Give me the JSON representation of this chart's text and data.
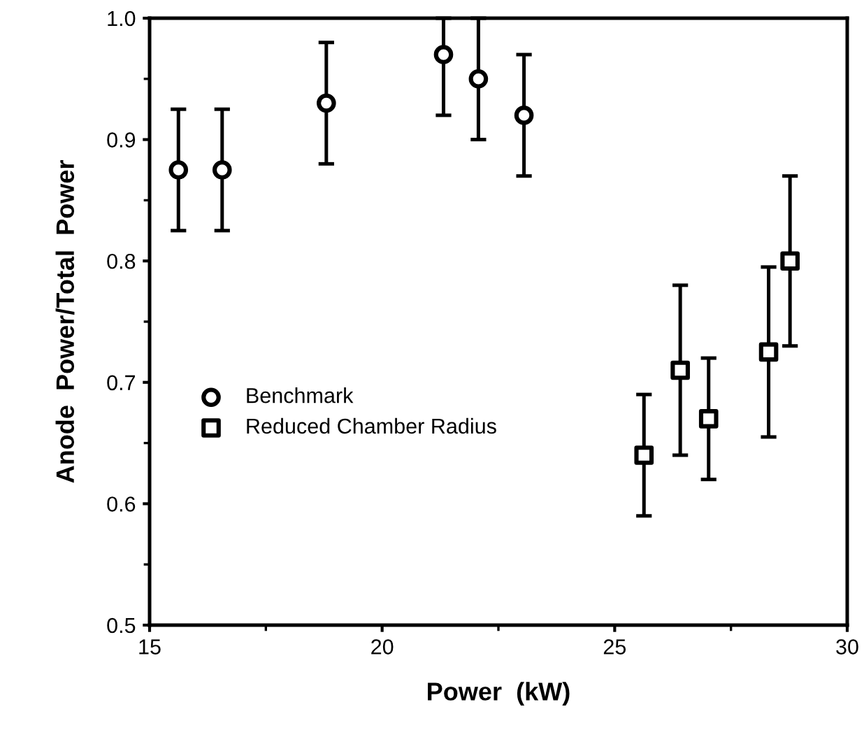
{
  "chart_data": {
    "type": "scatter",
    "xlabel": "Power  (kW)",
    "ylabel": "Anode  Power/Total  Power",
    "xlim": [
      15,
      30
    ],
    "ylim": [
      0.5,
      1.0
    ],
    "xticks": [
      15,
      20,
      25,
      30
    ],
    "yticks": [
      0.5,
      0.6,
      0.7,
      0.8,
      0.9,
      {
        "value": 1.0,
        "label": "1.0"
      }
    ],
    "grid": false,
    "legend": "left",
    "series": [
      {
        "name": "Benchmark",
        "marker": "circle",
        "color": "#000000",
        "x": [
          15.62,
          16.56,
          18.8,
          21.32,
          22.07,
          23.05
        ],
        "values": [
          0.875,
          0.875,
          0.93,
          0.97,
          0.95,
          0.92
        ],
        "errors": [
          0.05,
          0.05,
          0.05,
          [
            0.92,
            1.0
          ],
          0.05,
          0.05
        ]
      },
      {
        "name": "Reduced Chamber Radius",
        "marker": "square",
        "color": "#000000",
        "x": [
          25.63,
          26.41,
          27.02,
          28.31,
          28.77
        ],
        "values": [
          0.64,
          0.71,
          0.67,
          0.725,
          0.8
        ],
        "errors": [
          0.05,
          0.07,
          0.05,
          0.07,
          0.07
        ]
      }
    ]
  }
}
